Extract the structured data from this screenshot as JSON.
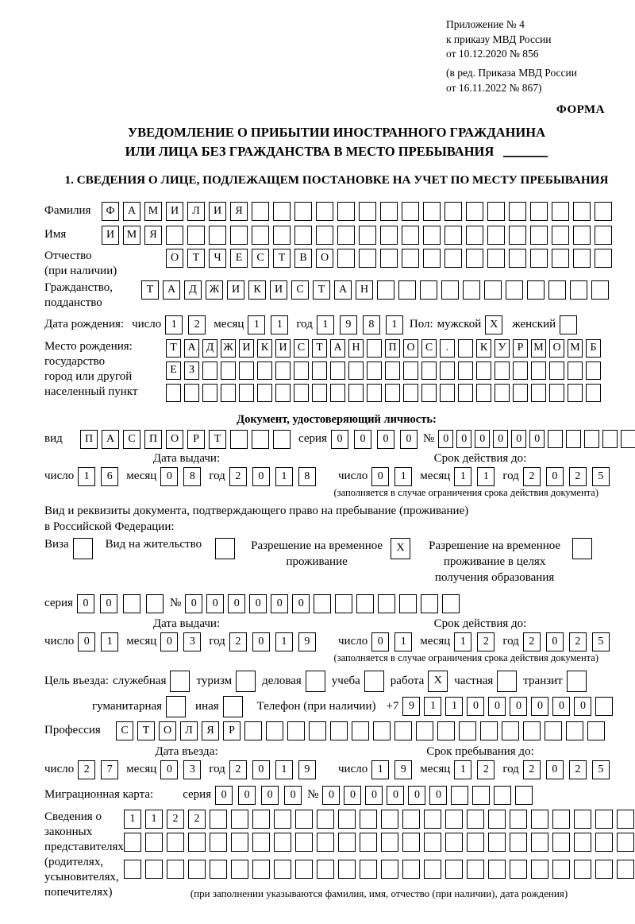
{
  "header": {
    "line1": "Приложение № 4",
    "line2": "к приказу МВД России",
    "line3": "от 10.12.2020 № 856",
    "amend1": "(в ред. Приказа МВД России",
    "amend2": "от 16.11.2022 № 867)",
    "form_label": "ФОРМА"
  },
  "title": {
    "line1": "УВЕДОМЛЕНИЕ О ПРИБЫТИИ ИНОСТРАННОГО ГРАЖДАНИНА",
    "line2": "ИЛИ ЛИЦА БЕЗ ГРАЖДАНСТВА В МЕСТО ПРЕБЫВАНИЯ"
  },
  "section1": {
    "heading": "1. СВЕДЕНИЯ О ЛИЦЕ, ПОДЛЕЖАЩЕМ ПОСТАНОВКЕ НА УЧЕТ ПО МЕСТУ ПРЕБЫВАНИЯ"
  },
  "labels": {
    "day": "число",
    "month": "месяц",
    "year": "год",
    "seriya": "серия",
    "number": "№"
  },
  "fields": {
    "surname": {
      "label": "Фамилия",
      "cells": {
        "count": 24,
        "text": "ФАМИЛИЯ"
      }
    },
    "name": {
      "label": "Имя",
      "cells": {
        "count": 24,
        "text": "ИМЯ"
      }
    },
    "patronymic": {
      "label1": "Отчество",
      "label2": "(при наличии)",
      "cells": {
        "count": 21,
        "text": "ОТЧЕСТВО"
      }
    },
    "citizenship": {
      "label1": "Гражданство,",
      "label2": "подданство",
      "cells": {
        "count": 22,
        "text": "ТАДЖИКИСТАН"
      }
    },
    "birth_date": {
      "label": "Дата рождения:",
      "d": {
        "count": 2,
        "text": "12"
      },
      "m": {
        "count": 2,
        "text": "11"
      },
      "y": {
        "count": 4,
        "text": "1981"
      }
    },
    "gender": {
      "label": "Пол:",
      "male_label": "мужской",
      "male": {
        "count": 1,
        "text": "X"
      },
      "female_label": "женский",
      "female": {
        "count": 1,
        "text": ""
      }
    },
    "birth_place": {
      "label1": "Место рождения:",
      "label2": "государство",
      "label3": "город или другой",
      "label4": "населенный пункт",
      "row1": {
        "count": 24,
        "text": "ТАДЖИКИСТАН ПОС. КУРМОМБ"
      },
      "row2": {
        "count": 24,
        "text": "ЕЗ"
      },
      "row3": {
        "count": 24,
        "text": ""
      }
    }
  },
  "identity_doc": {
    "heading": "Документ, удостоверяющий личность:",
    "vid_label": "вид",
    "vid": {
      "count": 10,
      "text": "ПАСПОРТ"
    },
    "seriya": {
      "count": 4,
      "text": "0000"
    },
    "number": {
      "count": 11,
      "text": "000000"
    }
  },
  "dates": {
    "passport_issue": {
      "title": "Дата выдачи:",
      "d": {
        "count": 2,
        "text": "16"
      },
      "m": {
        "count": 2,
        "text": "08"
      },
      "y": {
        "count": 4,
        "text": "2018"
      }
    },
    "passport_expiry": {
      "title": "Срок действия до:",
      "d": {
        "count": 2,
        "text": "01"
      },
      "m": {
        "count": 2,
        "text": "11"
      },
      "y": {
        "count": 4,
        "text": "2025"
      }
    },
    "permit_issue": {
      "title": "Дата выдачи:",
      "d": {
        "count": 2,
        "text": "01"
      },
      "m": {
        "count": 2,
        "text": "03"
      },
      "y": {
        "count": 4,
        "text": "2019"
      }
    },
    "permit_expiry": {
      "title": "Срок действия до:",
      "d": {
        "count": 2,
        "text": "01"
      },
      "m": {
        "count": 2,
        "text": "12"
      },
      "y": {
        "count": 4,
        "text": "2025"
      }
    },
    "entry_date": {
      "title": "Дата въезда:",
      "d": {
        "count": 2,
        "text": "27"
      },
      "m": {
        "count": 2,
        "text": "03"
      },
      "y": {
        "count": 4,
        "text": "2019"
      }
    },
    "stay_until": {
      "title": "Срок пребывания до:",
      "d": {
        "count": 2,
        "text": "19"
      },
      "m": {
        "count": 2,
        "text": "12"
      },
      "y": {
        "count": 4,
        "text": "2025"
      }
    }
  },
  "notes": {
    "limit_note": "(заполняется в случае ограничения срока действия документа)"
  },
  "residence": {
    "intro1": "Вид и реквизиты документа, подтверждающего право на пребывание (проживание)",
    "intro2": "в Российской Федерации:",
    "visa": {
      "label": "Виза",
      "check": {
        "count": 1,
        "text": ""
      }
    },
    "vnj": {
      "label": "Вид на жительство",
      "check": {
        "count": 1,
        "text": ""
      }
    },
    "rvp": {
      "label": "Разрешение на временное проживание",
      "check": {
        "count": 1,
        "text": "X"
      }
    },
    "rvp_edu": {
      "label": "Разрешение на временное проживание в целях получения образования",
      "check": {
        "count": 1,
        "text": ""
      }
    },
    "seriya": {
      "count": 4,
      "text": "00"
    },
    "number": {
      "count": 13,
      "text": "000000"
    }
  },
  "purpose": {
    "label": "Цель въезда:",
    "o1": {
      "label": "служебная",
      "check": {
        "count": 1,
        "text": ""
      }
    },
    "o2": {
      "label": "туризм",
      "check": {
        "count": 1,
        "text": ""
      }
    },
    "o3": {
      "label": "деловая",
      "check": {
        "count": 1,
        "text": ""
      }
    },
    "o4": {
      "label": "учеба",
      "check": {
        "count": 1,
        "text": ""
      }
    },
    "o5": {
      "label": "работа",
      "check": {
        "count": 1,
        "text": "X"
      }
    },
    "o6": {
      "label": "частная",
      "check": {
        "count": 1,
        "text": ""
      }
    },
    "o7": {
      "label": "транзит",
      "check": {
        "count": 1,
        "text": ""
      }
    },
    "o8": {
      "label": "гуманитарная",
      "check": {
        "count": 1,
        "text": ""
      }
    },
    "o9": {
      "label": "иная",
      "check": {
        "count": 1,
        "text": ""
      }
    }
  },
  "phone": {
    "label": "Телефон (при наличии)",
    "prefix": "+7",
    "cells": {
      "count": 10,
      "text": "911000000"
    }
  },
  "profession": {
    "label": "Профессия",
    "cells": {
      "count": 23,
      "text": "СТОЛЯР"
    }
  },
  "migration_card": {
    "label": "Миграционная карта:",
    "seriya": {
      "count": 4,
      "text": "0000"
    },
    "number": {
      "count": 10,
      "text": "000000"
    }
  },
  "legal_reps": {
    "label1": "Сведения о",
    "label2": "законных",
    "label3": "представителях",
    "label4": "(родителях,",
    "label5": "усыновителях,",
    "label6": "попечителях)",
    "row1": {
      "count": 24,
      "text": "1122"
    },
    "row2": {
      "count": 24,
      "text": ""
    },
    "row3": {
      "count": 24,
      "text": ""
    },
    "note": "(при заполнении указываются фамилия, имя, отчество (при наличии), дата рождения)"
  }
}
